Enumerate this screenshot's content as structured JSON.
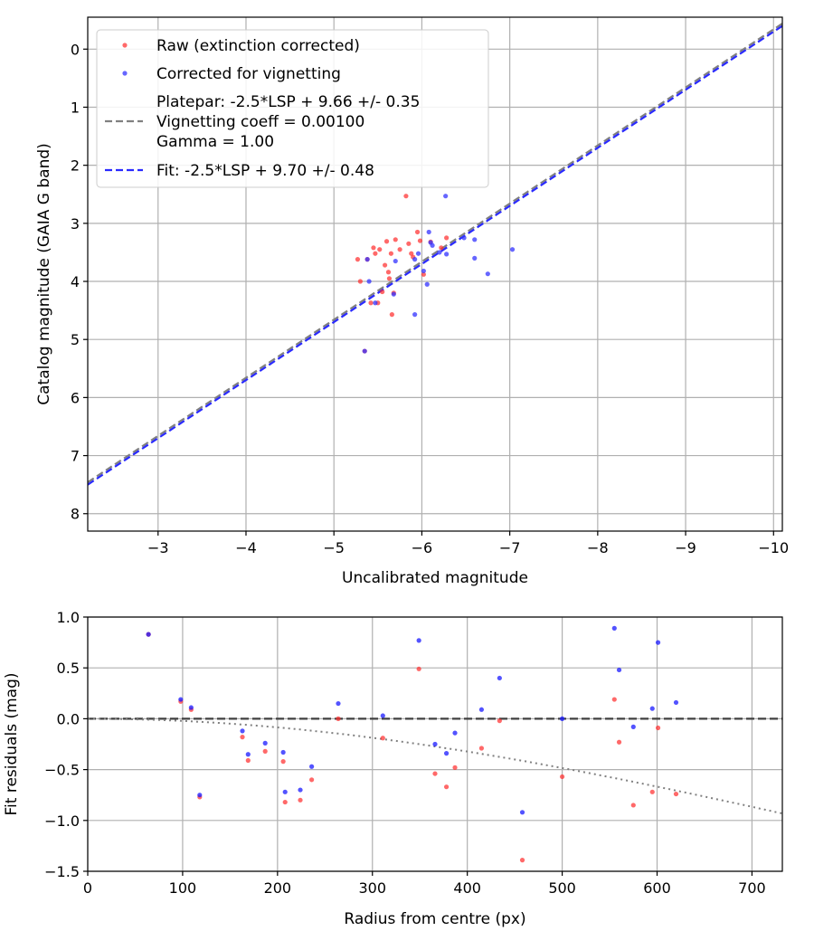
{
  "chart_data": [
    {
      "type": "scatter",
      "xlabel": "Uncalibrated magnitude",
      "ylabel": "Catalog magnitude (GAIA G band)",
      "xlim": [
        -2.2,
        -10.1
      ],
      "ylim": [
        8.3,
        -0.55
      ],
      "x_inverted": true,
      "y_inverted": true,
      "xticks": [
        -3,
        -4,
        -5,
        -6,
        -7,
        -8,
        -9,
        -10
      ],
      "yticks": [
        0,
        1,
        2,
        3,
        4,
        5,
        6,
        7,
        8
      ],
      "tick_labels_x": [
        "−3",
        "−4",
        "−5",
        "−6",
        "−7",
        "−8",
        "−9",
        "−10"
      ],
      "tick_labels_y": [
        "0",
        "1",
        "2",
        "3",
        "4",
        "5",
        "6",
        "7",
        "8"
      ],
      "grid": true,
      "legend_placement": "upper-left",
      "legend": [
        {
          "label": "Raw (extinction corrected)",
          "kind": "marker",
          "color": "#ff2a2a"
        },
        {
          "label": "Corrected for vignetting",
          "kind": "marker",
          "color": "#3333ff"
        },
        {
          "label_lines": [
            "Platepar: -2.5*LSP + 9.66 +/- 0.35",
            "Vignetting coeff = 0.00100",
            "Gamma = 1.00"
          ],
          "kind": "line",
          "color": "#808080"
        },
        {
          "label": "Fit: -2.5*LSP + 9.70 +/- 0.48",
          "kind": "line",
          "color": "#2a2aff"
        }
      ],
      "series": [
        {
          "name": "Raw (extinction corrected)",
          "color": "#ff2a2a",
          "points": [
            [
              -5.27,
              3.62
            ],
            [
              -5.3,
              4.0
            ],
            [
              -5.35,
              5.2
            ],
            [
              -5.38,
              3.62
            ],
            [
              -5.42,
              4.37
            ],
            [
              -5.45,
              3.42
            ],
            [
              -5.47,
              3.52
            ],
            [
              -5.5,
              4.37
            ],
            [
              -5.52,
              3.45
            ],
            [
              -5.55,
              4.18
            ],
            [
              -5.58,
              3.72
            ],
            [
              -5.6,
              3.31
            ],
            [
              -5.62,
              3.84
            ],
            [
              -5.63,
              3.95
            ],
            [
              -5.65,
              3.52
            ],
            [
              -5.66,
              4.57
            ],
            [
              -5.68,
              4.2
            ],
            [
              -5.7,
              3.28
            ],
            [
              -5.75,
              3.45
            ],
            [
              -5.82,
              2.53
            ],
            [
              -5.85,
              3.35
            ],
            [
              -5.88,
              3.52
            ],
            [
              -5.9,
              3.58
            ],
            [
              -5.95,
              3.15
            ],
            [
              -5.98,
              3.3
            ],
            [
              -6.02,
              3.88
            ],
            [
              -6.1,
              3.32
            ],
            [
              -6.22,
              3.42
            ],
            [
              -6.28,
              3.25
            ]
          ]
        },
        {
          "name": "Corrected for vignetting",
          "color": "#3333ff",
          "points": [
            [
              -5.35,
              5.2
            ],
            [
              -5.4,
              4.0
            ],
            [
              -5.47,
              4.37
            ],
            [
              -5.38,
              3.62
            ],
            [
              -5.7,
              3.65
            ],
            [
              -5.68,
              4.22
            ],
            [
              -5.92,
              4.57
            ],
            [
              -5.92,
              3.62
            ],
            [
              -5.96,
              3.52
            ],
            [
              -6.02,
              3.82
            ],
            [
              -6.06,
              4.05
            ],
            [
              -6.08,
              3.15
            ],
            [
              -6.1,
              3.33
            ],
            [
              -6.12,
              3.38
            ],
            [
              -6.2,
              3.5
            ],
            [
              -6.27,
              2.53
            ],
            [
              -6.28,
              3.53
            ],
            [
              -6.48,
              3.25
            ],
            [
              -6.6,
              3.28
            ],
            [
              -6.6,
              3.6
            ],
            [
              -6.75,
              3.87
            ],
            [
              -7.03,
              3.45
            ]
          ]
        }
      ],
      "lines": [
        {
          "name": "Platepar",
          "intercept": 9.66,
          "slope": 1.0,
          "color": "#808080"
        },
        {
          "name": "Fit",
          "intercept": 9.7,
          "slope": 1.0,
          "color": "#2a2aff"
        }
      ]
    },
    {
      "type": "scatter",
      "xlabel": "Radius from centre (px)",
      "ylabel": "Fit residuals (mag)",
      "xlim": [
        0,
        732
      ],
      "ylim": [
        -1.5,
        1.0
      ],
      "xticks": [
        0,
        100,
        200,
        300,
        400,
        500,
        600,
        700
      ],
      "yticks": [
        -1.5,
        -1.0,
        -0.5,
        0.0,
        0.5,
        1.0
      ],
      "tick_labels_x": [
        "0",
        "100",
        "200",
        "300",
        "400",
        "500",
        "600",
        "700"
      ],
      "tick_labels_y": [
        "−1.5",
        "−1.0",
        "−0.5",
        "0.0",
        "0.5",
        "1.0"
      ],
      "grid": true,
      "series": [
        {
          "name": "Raw (extinction corrected)",
          "color": "#ff2a2a",
          "points": [
            [
              64,
              0.83
            ],
            [
              98,
              0.17
            ],
            [
              109,
              0.09
            ],
            [
              118,
              -0.77
            ],
            [
              163,
              -0.18
            ],
            [
              169,
              -0.41
            ],
            [
              187,
              -0.32
            ],
            [
              206,
              -0.42
            ],
            [
              208,
              -0.82
            ],
            [
              224,
              -0.8
            ],
            [
              236,
              -0.6
            ],
            [
              264,
              0.0
            ],
            [
              311,
              -0.19
            ],
            [
              349,
              0.49
            ],
            [
              366,
              -0.54
            ],
            [
              378,
              -0.67
            ],
            [
              387,
              -0.48
            ],
            [
              415,
              -0.29
            ],
            [
              434,
              -0.02
            ],
            [
              458,
              -1.39
            ],
            [
              500,
              -0.57
            ],
            [
              555,
              0.19
            ],
            [
              560,
              -0.23
            ],
            [
              575,
              -0.85
            ],
            [
              595,
              -0.72
            ],
            [
              601,
              -0.09
            ],
            [
              620,
              -0.74
            ]
          ]
        },
        {
          "name": "Corrected for vignetting",
          "color": "#1a1aff",
          "points": [
            [
              64,
              0.83
            ],
            [
              98,
              0.19
            ],
            [
              109,
              0.11
            ],
            [
              118,
              -0.75
            ],
            [
              163,
              -0.12
            ],
            [
              169,
              -0.35
            ],
            [
              187,
              -0.24
            ],
            [
              206,
              -0.33
            ],
            [
              208,
              -0.72
            ],
            [
              224,
              -0.7
            ],
            [
              236,
              -0.47
            ],
            [
              264,
              0.15
            ],
            [
              311,
              0.03
            ],
            [
              349,
              0.77
            ],
            [
              366,
              -0.25
            ],
            [
              378,
              -0.34
            ],
            [
              387,
              -0.14
            ],
            [
              415,
              0.09
            ],
            [
              434,
              0.4
            ],
            [
              458,
              -0.92
            ],
            [
              500,
              0.0
            ],
            [
              555,
              0.89
            ],
            [
              560,
              0.48
            ],
            [
              575,
              -0.08
            ],
            [
              595,
              0.1
            ],
            [
              601,
              0.75
            ],
            [
              620,
              0.16
            ]
          ]
        }
      ],
      "reference_lines": [
        {
          "style": "dashed",
          "value": 0.0,
          "color": "#404040"
        },
        {
          "style": "dotted",
          "vignetting_coeff": 0.001,
          "color": "#808080"
        }
      ]
    }
  ]
}
